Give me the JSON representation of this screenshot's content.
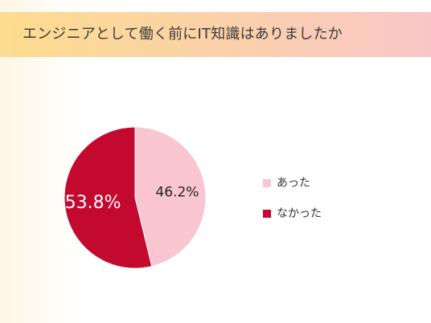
{
  "chart_data": {
    "type": "pie",
    "title": "エンジニアとして働く前にIT知識はありましたか",
    "categories": [
      "あった",
      "なかった"
    ],
    "values": [
      46.2,
      53.8
    ],
    "value_labels": [
      "46.2%",
      "53.8%"
    ],
    "colors": [
      "#f9c5d0",
      "#c4092f"
    ],
    "label_colors": [
      "#222222",
      "#ffffff"
    ],
    "legend_position": "right"
  }
}
